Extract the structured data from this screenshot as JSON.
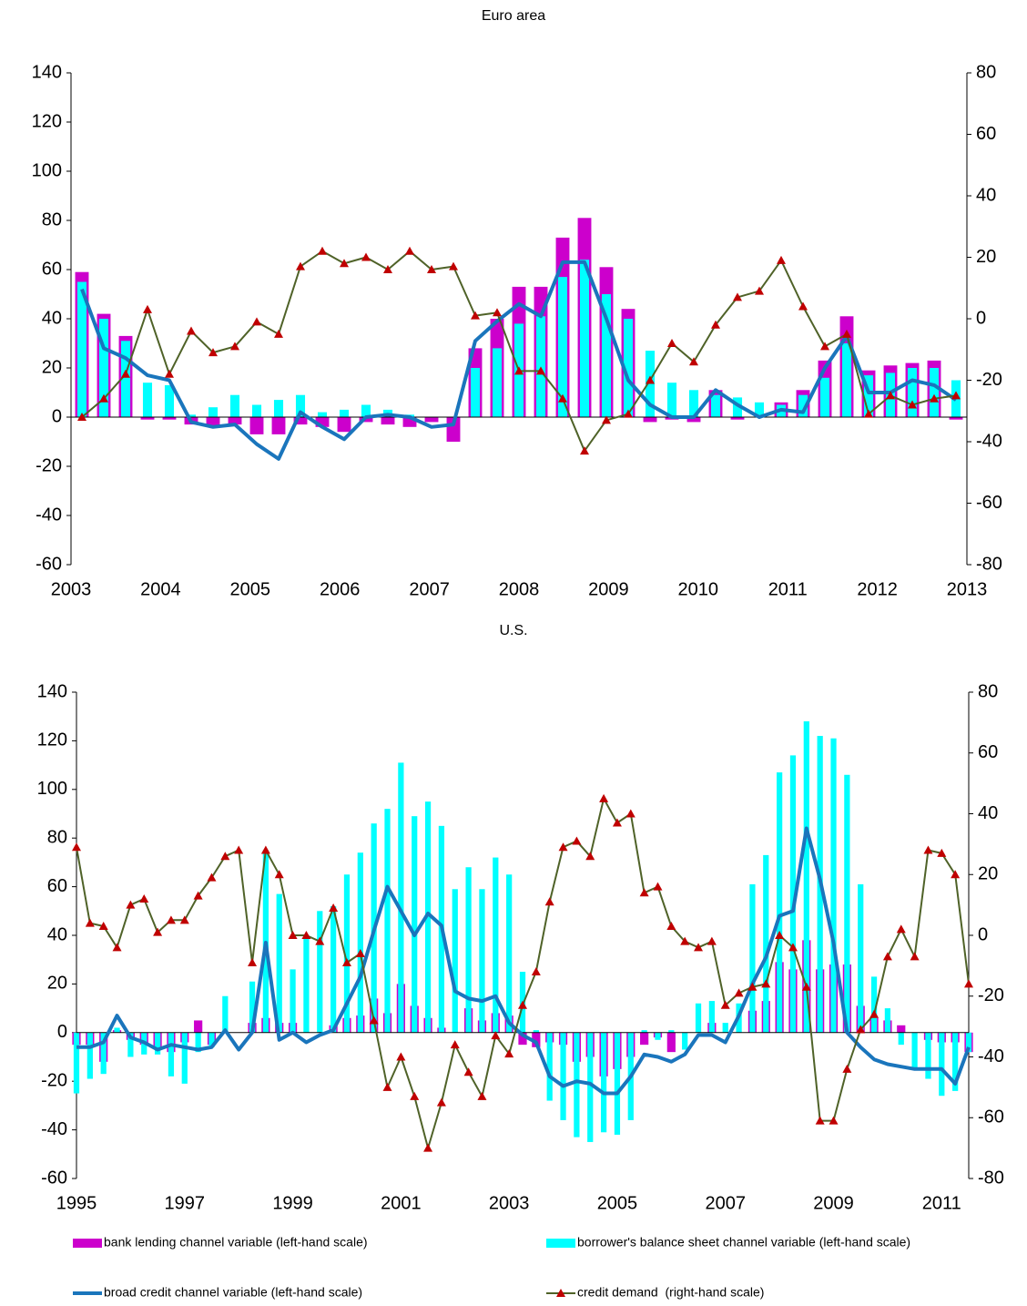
{
  "chart_data": [
    {
      "type": "combo",
      "title": "Euro area",
      "categories": [
        "2003",
        null,
        null,
        null,
        "2004",
        null,
        null,
        null,
        "2005",
        null,
        null,
        null,
        "2006",
        null,
        null,
        null,
        "2007",
        null,
        null,
        null,
        "2008",
        null,
        null,
        null,
        "2009",
        null,
        null,
        null,
        "2010",
        null,
        null,
        null,
        "2011",
        null,
        null,
        null,
        "2012",
        null,
        null,
        null,
        "2013"
      ],
      "ylim": [
        -60,
        140
      ],
      "yticks": [
        -60,
        -40,
        -20,
        0,
        20,
        40,
        60,
        80,
        100,
        120,
        140
      ],
      "y2lim": [
        -80,
        80
      ],
      "y2ticks": [
        -80,
        -60,
        -40,
        -20,
        0,
        20,
        40,
        60,
        80
      ],
      "series": [
        {
          "type": "bar",
          "color": "#cc00cc",
          "values": [
            59,
            42,
            33,
            -1,
            -1,
            -3,
            -4,
            -3,
            -7,
            -7,
            -3,
            -4,
            -6,
            -2,
            -3,
            -4,
            -2,
            -10,
            28,
            40,
            53,
            53,
            73,
            81,
            61,
            44,
            -2,
            -1,
            -2,
            11,
            -1,
            0,
            6,
            11,
            23,
            41,
            19,
            21,
            22,
            23,
            -1
          ]
        },
        {
          "type": "bar",
          "color": "#00ffff",
          "values": [
            55,
            40,
            31,
            14,
            13,
            1,
            4,
            9,
            5,
            7,
            9,
            2,
            3,
            5,
            3,
            1,
            0,
            0,
            20,
            28,
            38,
            41,
            57,
            64,
            50,
            40,
            27,
            14,
            11,
            9,
            8,
            6,
            5,
            9,
            16,
            30,
            17,
            18,
            20,
            20,
            15
          ]
        },
        {
          "type": "line",
          "color": "#1a75bc",
          "values": [
            52,
            28,
            24,
            17,
            15,
            -2,
            -4,
            -3,
            -11,
            -17,
            2,
            -4,
            -9,
            0,
            1,
            0,
            -4,
            -3,
            31,
            39,
            46,
            41,
            63,
            63,
            40,
            15,
            5,
            0,
            0,
            11,
            5,
            0,
            3,
            2,
            20,
            33,
            10,
            10,
            15,
            13,
            7
          ]
        },
        {
          "type": "line",
          "color": "#4f6228",
          "axis": "y2",
          "marker": "triangle",
          "marker_color": "#c00000",
          "values": [
            -32,
            -26,
            -18,
            3,
            -18,
            -4,
            -11,
            -9,
            -1,
            -5,
            17,
            22,
            18,
            20,
            16,
            22,
            16,
            17,
            1,
            2,
            -17,
            -17,
            -26,
            -43,
            -33,
            -31,
            -20,
            -8,
            -14,
            -2,
            7,
            9,
            19,
            4,
            -9,
            -5,
            -31,
            -25,
            -28,
            -26,
            -25
          ]
        }
      ]
    },
    {
      "type": "combo",
      "title": "U.S.",
      "categories": [
        "1995",
        null,
        null,
        null,
        null,
        null,
        null,
        null,
        "1997",
        null,
        null,
        null,
        null,
        null,
        null,
        null,
        "1999",
        null,
        null,
        null,
        null,
        null,
        null,
        null,
        "2001",
        null,
        null,
        null,
        null,
        null,
        null,
        null,
        "2003",
        null,
        null,
        null,
        null,
        null,
        null,
        null,
        "2005",
        null,
        null,
        null,
        null,
        null,
        null,
        null,
        "2007",
        null,
        null,
        null,
        null,
        null,
        null,
        null,
        "2009",
        null,
        null,
        null,
        null,
        null,
        null,
        null,
        "2011",
        null,
        null
      ],
      "ylim": [
        -60,
        140
      ],
      "yticks": [
        -60,
        -40,
        -20,
        0,
        20,
        40,
        60,
        80,
        100,
        120,
        140
      ],
      "y2lim": [
        -80,
        80
      ],
      "y2ticks": [
        -80,
        -60,
        -40,
        -20,
        0,
        20,
        40,
        60,
        80
      ],
      "series": [
        {
          "type": "bar",
          "name": "bank lending channel variable (left-hand scale)",
          "color": "#cc00cc",
          "values": [
            -5,
            -5,
            -12,
            1,
            -3,
            -5,
            -6,
            -8,
            -4,
            5,
            -5,
            0,
            0,
            4,
            6,
            4,
            4,
            0,
            0,
            3,
            6,
            7,
            14,
            8,
            20,
            11,
            6,
            2,
            0,
            10,
            5,
            8,
            7,
            -5,
            -6,
            -4,
            -5,
            -12,
            -10,
            -18,
            -15,
            -10,
            -5,
            -2,
            -8,
            0,
            0,
            4,
            0,
            0,
            9,
            13,
            29,
            26,
            38,
            26,
            28,
            28,
            11,
            6,
            5,
            3,
            0,
            -3,
            -4,
            -4,
            -8
          ]
        },
        {
          "type": "bar",
          "name": "borrower's balance sheet channel variable (left-hand scale)",
          "color": "#00ffff",
          "values": [
            -25,
            -19,
            -17,
            2,
            -10,
            -9,
            -9,
            -18,
            -21,
            -8,
            -6,
            15,
            0,
            21,
            75,
            57,
            26,
            40,
            50,
            52,
            65,
            74,
            86,
            92,
            111,
            89,
            95,
            85,
            59,
            68,
            59,
            72,
            65,
            25,
            1,
            -28,
            -36,
            -43,
            -45,
            -41,
            -42,
            -36,
            1,
            -3,
            1,
            -7,
            12,
            13,
            4,
            12,
            61,
            73,
            107,
            114,
            128,
            122,
            121,
            106,
            61,
            23,
            10,
            -5,
            -15,
            -19,
            -26,
            -24,
            -8
          ]
        },
        {
          "type": "line",
          "name": "broad credit channel variable (left-hand scale)",
          "color": "#1a75bc",
          "values": [
            -6,
            -6,
            -4,
            7,
            -2,
            -4,
            -7,
            -5,
            -6,
            -7,
            -6,
            1,
            -7,
            0,
            37,
            -3,
            0,
            -4,
            -1,
            1,
            12,
            23,
            42,
            60,
            50,
            40,
            49,
            44,
            17,
            14,
            13,
            15,
            4,
            -1,
            -4,
            -18,
            -22,
            -20,
            -21,
            -25,
            -25,
            -18,
            -9,
            -10,
            -12,
            -9,
            -1,
            -1,
            -4,
            7,
            20,
            31,
            48,
            50,
            84,
            63,
            37,
            0,
            -6,
            -11,
            -13,
            -14,
            -15,
            -15,
            -15,
            -21,
            -6
          ]
        },
        {
          "type": "line",
          "name": "credit demand  (right-hand scale)",
          "color": "#4f6228",
          "axis": "y2",
          "marker": "triangle",
          "marker_color": "#c00000",
          "values": [
            29,
            4,
            3,
            -4,
            10,
            12,
            1,
            5,
            5,
            13,
            19,
            26,
            28,
            -9,
            28,
            20,
            0,
            0,
            -2,
            9,
            -9,
            -6,
            -28,
            -50,
            -40,
            -53,
            -70,
            -55,
            -36,
            -45,
            -53,
            -33,
            -39,
            -23,
            -12,
            11,
            29,
            31,
            26,
            45,
            37,
            40,
            14,
            16,
            3,
            -2,
            -4,
            -2,
            -23,
            -19,
            -17,
            -16,
            0,
            -4,
            -17,
            -61,
            -61,
            -44,
            -31,
            -26,
            -7,
            2,
            -7,
            28,
            27,
            20,
            -16
          ]
        }
      ]
    }
  ]
}
